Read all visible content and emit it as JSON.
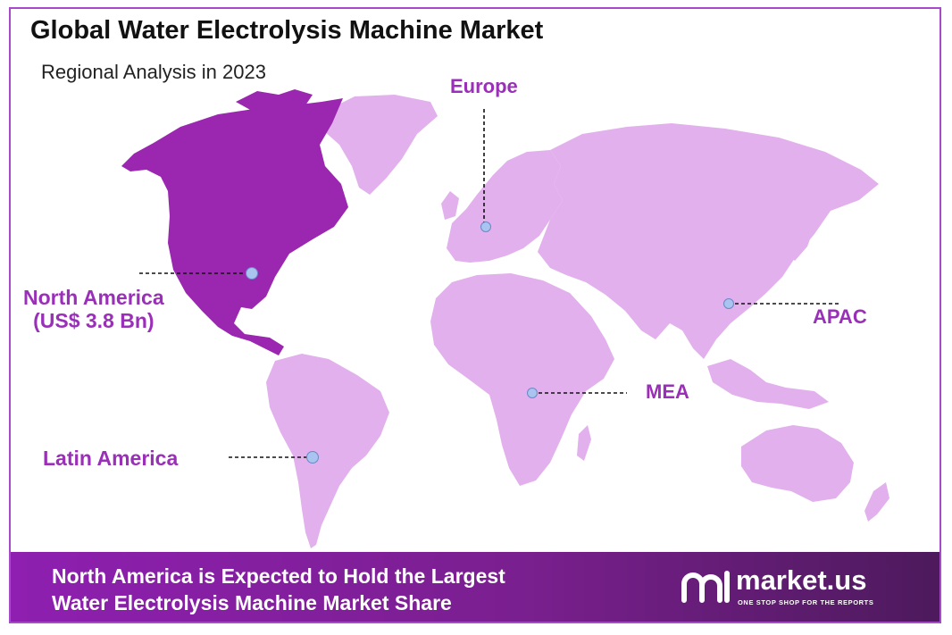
{
  "header": {
    "title": "Global Water Electrolysis Machine Market",
    "subtitle": "Regional Analysis in 2023"
  },
  "map": {
    "highlight_color": "#9b27b0",
    "land_color": "#e2b0ec",
    "marker_color": "#a9c4ee",
    "regions": {
      "europe": "Europe",
      "north_america": "North America",
      "north_america_value": "(US$ 3.8 Bn)",
      "apac": "APAC",
      "mea": "MEA",
      "latin_america": "Latin America"
    }
  },
  "footer": {
    "line1": "North America  is Expected to Hold the Largest",
    "line2": "Water Electrolysis Machine Market Share",
    "brand": "market.us",
    "tagline": "ONE STOP SHOP FOR THE REPORTS"
  }
}
